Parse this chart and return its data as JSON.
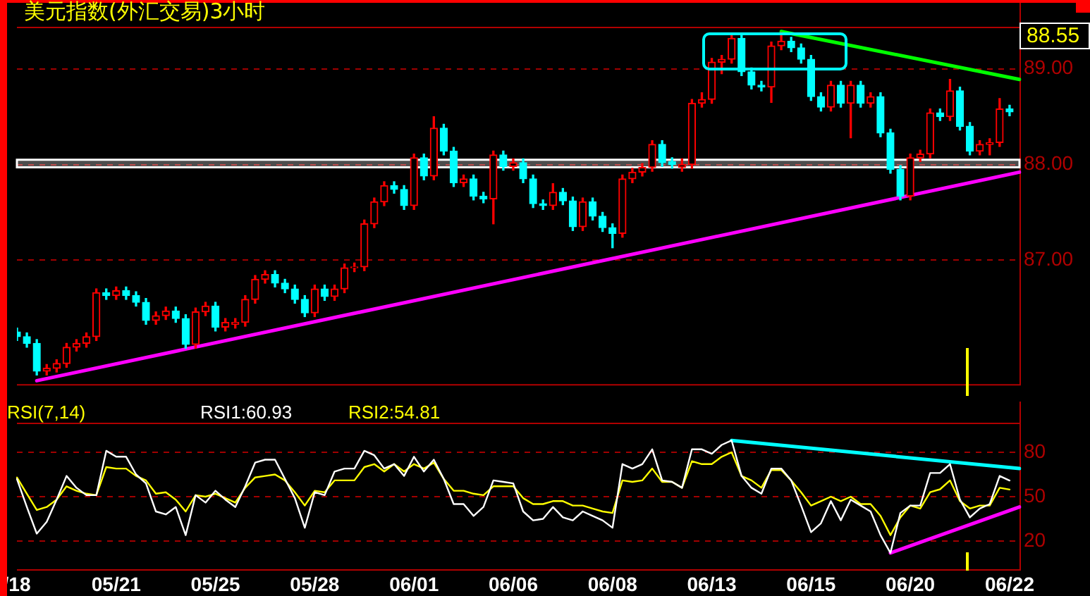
{
  "chart_data": [
    {
      "type": "candlestick",
      "title": "美元指数(外汇交易)3小时",
      "annotations": [
        "88.55"
      ],
      "categories": [
        null,
        null,
        null,
        null,
        null,
        null,
        null,
        null,
        null,
        null,
        null,
        null,
        null,
        null,
        null,
        null,
        null,
        null,
        null,
        null,
        null,
        null,
        null,
        null,
        null,
        null,
        null,
        null,
        null,
        null,
        null,
        null,
        null,
        null,
        null,
        null,
        null,
        null,
        null,
        null,
        null,
        null,
        null,
        null,
        null,
        null,
        null,
        null,
        null,
        null,
        null,
        null,
        null,
        null,
        null,
        null,
        null,
        null,
        null,
        null,
        null,
        null,
        null,
        null,
        null,
        null,
        null,
        null,
        null,
        null,
        null,
        null,
        null,
        null,
        null,
        null,
        null,
        null,
        null,
        null,
        null,
        null,
        null,
        null,
        null,
        null,
        null,
        null,
        null,
        null,
        null,
        null,
        null,
        null,
        null,
        null,
        null,
        null,
        null,
        null,
        null,
        null
      ],
      "ohlc": [
        [
          86.25,
          86.29,
          86.16,
          86.2
        ],
        [
          86.2,
          86.24,
          86.09,
          86.13
        ],
        [
          86.13,
          86.17,
          85.8,
          85.84
        ],
        [
          85.84,
          85.91,
          85.8,
          85.87
        ],
        [
          85.87,
          85.96,
          85.83,
          85.92
        ],
        [
          85.92,
          86.13,
          85.88,
          86.09
        ],
        [
          86.09,
          86.17,
          86.05,
          86.13
        ],
        [
          86.13,
          86.24,
          86.09,
          86.2
        ],
        [
          86.2,
          86.7,
          86.16,
          86.66
        ],
        [
          86.66,
          86.7,
          86.59,
          86.63
        ],
        [
          86.63,
          86.72,
          86.59,
          86.68
        ],
        [
          86.68,
          86.72,
          86.59,
          86.63
        ],
        [
          86.63,
          86.67,
          86.52,
          86.56
        ],
        [
          86.56,
          86.6,
          86.33,
          86.37
        ],
        [
          86.37,
          86.46,
          86.33,
          86.42
        ],
        [
          86.42,
          86.51,
          86.38,
          86.47
        ],
        [
          86.47,
          86.51,
          86.35,
          86.39
        ],
        [
          86.39,
          86.43,
          86.08,
          86.12
        ],
        [
          86.12,
          86.5,
          86.08,
          86.46
        ],
        [
          86.46,
          86.56,
          86.42,
          86.52
        ],
        [
          86.52,
          86.56,
          86.26,
          86.3
        ],
        [
          86.3,
          86.39,
          86.26,
          86.35
        ],
        [
          86.33,
          86.39,
          86.29,
          86.35
        ],
        [
          86.35,
          86.63,
          86.31,
          86.59
        ],
        [
          86.59,
          86.84,
          86.55,
          86.8
        ],
        [
          86.8,
          86.89,
          86.76,
          86.85
        ],
        [
          86.85,
          86.89,
          86.72,
          86.76
        ],
        [
          86.76,
          86.8,
          86.66,
          86.7
        ],
        [
          86.7,
          86.74,
          86.55,
          86.59
        ],
        [
          86.59,
          86.63,
          86.41,
          86.45
        ],
        [
          86.45,
          86.74,
          86.41,
          86.7
        ],
        [
          86.7,
          86.74,
          86.58,
          86.62
        ],
        [
          86.62,
          86.74,
          86.58,
          86.7
        ],
        [
          86.7,
          86.96,
          86.66,
          86.92
        ],
        [
          86.92,
          86.97,
          86.88,
          86.93
        ],
        [
          86.93,
          87.42,
          86.89,
          87.38
        ],
        [
          87.38,
          87.65,
          87.34,
          87.61
        ],
        [
          87.61,
          87.82,
          87.57,
          87.78
        ],
        [
          87.78,
          87.82,
          87.7,
          87.74
        ],
        [
          87.74,
          87.78,
          87.53,
          87.57
        ],
        [
          87.57,
          88.11,
          87.53,
          88.07
        ],
        [
          88.07,
          88.11,
          87.84,
          87.88
        ],
        [
          87.88,
          88.5,
          87.84,
          88.38
        ],
        [
          88.38,
          88.42,
          88.1,
          88.14
        ],
        [
          88.14,
          88.18,
          87.77,
          87.81
        ],
        [
          87.81,
          87.89,
          87.77,
          87.85
        ],
        [
          87.85,
          87.89,
          87.63,
          87.67
        ],
        [
          87.67,
          87.71,
          87.6,
          87.64
        ],
        [
          87.64,
          88.14,
          87.38,
          88.1
        ],
        [
          88.1,
          88.14,
          87.94,
          87.98
        ],
        [
          87.98,
          88.06,
          87.94,
          88.02
        ],
        [
          88.02,
          88.06,
          87.81,
          87.85
        ],
        [
          87.85,
          87.89,
          87.55,
          87.59
        ],
        [
          87.59,
          87.63,
          87.53,
          87.57
        ],
        [
          87.57,
          87.8,
          87.53,
          87.71
        ],
        [
          87.71,
          87.75,
          87.58,
          87.62
        ],
        [
          87.62,
          87.66,
          87.31,
          87.35
        ],
        [
          87.35,
          87.65,
          87.31,
          87.61
        ],
        [
          87.61,
          87.65,
          87.42,
          87.46
        ],
        [
          87.46,
          87.5,
          87.3,
          87.34
        ],
        [
          87.34,
          87.38,
          87.13,
          87.28
        ],
        [
          87.28,
          87.89,
          87.24,
          87.85
        ],
        [
          87.85,
          87.96,
          87.81,
          87.92
        ],
        [
          87.92,
          88.01,
          87.88,
          87.97
        ],
        [
          87.97,
          88.25,
          87.93,
          88.21
        ],
        [
          88.21,
          88.25,
          87.98,
          88.02
        ],
        [
          88.03,
          88.07,
          87.96,
          88.0
        ],
        [
          87.97,
          88.06,
          87.93,
          88.0
        ],
        [
          88.0,
          88.68,
          87.96,
          88.64
        ],
        [
          88.64,
          88.75,
          88.6,
          88.68
        ],
        [
          88.68,
          89.11,
          88.64,
          89.07
        ],
        [
          89.07,
          89.14,
          88.95,
          89.1
        ],
        [
          89.1,
          89.37,
          89.06,
          89.32
        ],
        [
          89.32,
          89.36,
          88.93,
          88.97
        ],
        [
          88.97,
          89.01,
          88.79,
          88.83
        ],
        [
          88.83,
          88.87,
          88.77,
          88.81
        ],
        [
          88.81,
          89.28,
          88.65,
          89.24
        ],
        [
          89.24,
          89.38,
          89.2,
          89.29
        ],
        [
          89.29,
          89.33,
          89.18,
          89.22
        ],
        [
          89.22,
          89.26,
          89.06,
          89.1
        ],
        [
          89.1,
          89.14,
          88.67,
          88.71
        ],
        [
          88.71,
          88.75,
          88.56,
          88.6
        ],
        [
          88.6,
          88.87,
          88.56,
          88.83
        ],
        [
          88.83,
          88.87,
          88.6,
          88.64
        ],
        [
          88.64,
          88.87,
          88.28,
          88.83
        ],
        [
          88.83,
          88.87,
          88.6,
          88.64
        ],
        [
          88.64,
          88.75,
          88.6,
          88.71
        ],
        [
          88.71,
          88.75,
          88.29,
          88.33
        ],
        [
          88.33,
          88.37,
          87.91,
          87.95
        ],
        [
          87.95,
          87.99,
          87.63,
          87.67
        ],
        [
          87.67,
          88.11,
          87.63,
          88.07
        ],
        [
          88.07,
          88.15,
          88.03,
          88.11
        ],
        [
          88.11,
          88.58,
          88.07,
          88.54
        ],
        [
          88.54,
          88.58,
          88.46,
          88.5
        ],
        [
          88.5,
          88.89,
          88.46,
          88.77
        ],
        [
          88.77,
          88.81,
          88.36,
          88.4
        ],
        [
          88.4,
          88.44,
          88.1,
          88.14
        ],
        [
          88.14,
          88.25,
          88.1,
          88.21
        ],
        [
          88.21,
          88.27,
          88.1,
          88.23
        ],
        [
          88.23,
          88.69,
          88.19,
          88.58
        ],
        [
          88.58,
          88.62,
          88.51,
          88.55
        ],
        null
      ],
      "colors": [
        "#00ffff",
        "#00ffff",
        "#00ffff",
        "#ff0000",
        "#ff0000",
        "#ff0000",
        "#ff0000",
        "#ff0000",
        "#ff0000",
        "#00ffff",
        "#ff0000",
        "#00ffff",
        "#00ffff",
        "#00ffff",
        "#ff0000",
        "#ff0000",
        "#00ffff",
        "#00ffff",
        "#ff0000",
        "#ff0000",
        "#00ffff",
        "#ff0000",
        "#ff0000",
        "#ff0000",
        "#ff0000",
        "#ff0000",
        "#00ffff",
        "#00ffff",
        "#00ffff",
        "#00ffff",
        "#ff0000",
        "#00ffff",
        "#ff0000",
        "#ff0000",
        "#ff0000",
        "#ff0000",
        "#ff0000",
        "#ff0000",
        "#00ffff",
        "#00ffff",
        "#ff0000",
        "#00ffff",
        "#ff0000",
        "#00ffff",
        "#00ffff",
        "#ff0000",
        "#00ffff",
        "#00ffff",
        "#ff0000",
        "#00ffff",
        "#ff0000",
        "#00ffff",
        "#00ffff",
        "#00ffff",
        "#ff0000",
        "#00ffff",
        "#00ffff",
        "#ff0000",
        "#00ffff",
        "#00ffff",
        "#00ffff",
        "#ff0000",
        "#ff0000",
        "#ff0000",
        "#ff0000",
        "#00ffff",
        "#00ffff",
        "#ff0000",
        "#ff0000",
        "#ff0000",
        "#ff0000",
        "#ff0000",
        "#ff0000",
        "#00ffff",
        "#00ffff",
        "#00ffff",
        "#ff0000",
        "#ff0000",
        "#00ffff",
        "#00ffff",
        "#00ffff",
        "#00ffff",
        "#ff0000",
        "#00ffff",
        "#ff0000",
        "#00ffff",
        "#ff0000",
        "#00ffff",
        "#00ffff",
        "#00ffff",
        "#ff0000",
        "#ff0000",
        "#ff0000",
        "#00ffff",
        "#ff0000",
        "#00ffff",
        "#00ffff",
        "#ff0000",
        "#ff0000",
        "#ff0000",
        "#00ffff",
        null
      ],
      "series": [
        {
          "type": "line",
          "color": "#ff00ff",
          "values": [
            null,
            null,
            85.74,
            null,
            null,
            null,
            null,
            null,
            null,
            null,
            null,
            null,
            null,
            null,
            null,
            null,
            null,
            null,
            null,
            null,
            null,
            null,
            null,
            null,
            null,
            null,
            null,
            null,
            null,
            null,
            null,
            null,
            null,
            null,
            null,
            null,
            null,
            null,
            null,
            null,
            null,
            null,
            null,
            null,
            null,
            null,
            null,
            null,
            null,
            null,
            null,
            null,
            null,
            null,
            null,
            null,
            null,
            null,
            null,
            null,
            null,
            null,
            null,
            null,
            null,
            null,
            null,
            null,
            null,
            null,
            null,
            null,
            null,
            null,
            null,
            null,
            null,
            null,
            null,
            null,
            null,
            null,
            null,
            null,
            null,
            null,
            null,
            null,
            null,
            null,
            null,
            null,
            null,
            null,
            null,
            null,
            null,
            null,
            null,
            null,
            null,
            87.92
          ]
        },
        {
          "type": "line",
          "color": "#00ff00",
          "values": [
            null,
            null,
            null,
            null,
            null,
            null,
            null,
            null,
            null,
            null,
            null,
            null,
            null,
            null,
            null,
            null,
            null,
            null,
            null,
            null,
            null,
            null,
            null,
            null,
            null,
            null,
            null,
            null,
            null,
            null,
            null,
            null,
            null,
            null,
            null,
            null,
            null,
            null,
            null,
            null,
            null,
            null,
            null,
            null,
            null,
            null,
            null,
            null,
            null,
            null,
            null,
            null,
            null,
            null,
            null,
            null,
            null,
            null,
            null,
            null,
            null,
            null,
            null,
            null,
            null,
            null,
            null,
            null,
            null,
            null,
            null,
            null,
            null,
            null,
            null,
            null,
            null,
            89.39,
            null,
            null,
            null,
            null,
            null,
            null,
            null,
            null,
            null,
            null,
            null,
            null,
            null,
            null,
            null,
            null,
            null,
            null,
            null,
            null,
            null,
            null,
            null,
            88.89
          ]
        }
      ],
      "bands": [
        {
          "axis": "y",
          "from": 87.97,
          "to": 88.05,
          "color": "#ffffff"
        }
      ],
      "ylim": [
        85.69,
        89.44
      ],
      "yticks": [
        {
          "value": 87,
          "label": "87.00"
        },
        {
          "value": 88,
          "label": "88.00"
        },
        {
          "value": 89,
          "label": "89.00"
        }
      ],
      "grid": "y",
      "tick_labels": "y"
    },
    {
      "type": "line",
      "annotations": [
        "RSI(7,14)",
        "RSI1:60.93",
        "RSI2:54.81"
      ],
      "categories": [
        "/18",
        null,
        null,
        null,
        null,
        null,
        null,
        null,
        null,
        null,
        "05/21",
        null,
        null,
        null,
        null,
        null,
        null,
        null,
        null,
        null,
        "05/25",
        null,
        null,
        null,
        null,
        null,
        null,
        null,
        null,
        null,
        "05/28",
        null,
        null,
        null,
        null,
        null,
        null,
        null,
        null,
        null,
        "06/01",
        null,
        null,
        null,
        null,
        null,
        null,
        null,
        null,
        null,
        "06/06",
        null,
        null,
        null,
        null,
        null,
        null,
        null,
        null,
        null,
        "06/08",
        null,
        null,
        null,
        null,
        null,
        null,
        null,
        null,
        null,
        "06/13",
        null,
        null,
        null,
        null,
        null,
        null,
        null,
        null,
        null,
        "06/15",
        null,
        null,
        null,
        null,
        null,
        null,
        null,
        null,
        null,
        "06/20",
        null,
        null,
        null,
        null,
        null,
        null,
        null,
        null,
        null,
        "06/22",
        null
      ],
      "series": [
        {
          "color": "#ffffff",
          "values": [
            62,
            43,
            25,
            33,
            48,
            64,
            56,
            51,
            51,
            81,
            77,
            77,
            65,
            59,
            40,
            38,
            43,
            24,
            51,
            46,
            54,
            48,
            43,
            57,
            73,
            75,
            75,
            62,
            49,
            29,
            53,
            51,
            67,
            69,
            69,
            81,
            78,
            69,
            72,
            64,
            77,
            67,
            75,
            62,
            45,
            45,
            37,
            43,
            61,
            60,
            59,
            40,
            34,
            35,
            43,
            36,
            34,
            40,
            37,
            34,
            29,
            72,
            69,
            72,
            82,
            61,
            60,
            56,
            82,
            82,
            79,
            85,
            88,
            64,
            56,
            52,
            69,
            69,
            61,
            44,
            26,
            32,
            47,
            34,
            48,
            44,
            40,
            24,
            12,
            39,
            44,
            44,
            66,
            66,
            72,
            48,
            36,
            42,
            45,
            64,
            60.93,
            null
          ]
        },
        {
          "color": "#ffff00",
          "values": [
            63,
            52,
            41,
            43,
            48,
            57,
            54,
            52,
            51,
            70,
            69,
            69,
            64,
            61,
            52,
            53,
            48,
            40,
            51,
            50,
            52,
            49,
            46,
            56,
            63,
            64,
            65,
            61,
            53,
            44,
            54,
            53,
            61,
            61,
            61,
            70,
            72,
            67,
            72,
            67,
            72,
            69,
            73,
            62,
            54,
            54,
            52,
            51,
            57,
            57,
            57,
            49,
            45,
            45,
            47,
            47,
            44,
            44,
            42,
            40,
            39,
            61,
            60,
            61,
            69,
            60,
            60,
            56,
            74,
            72,
            72,
            77,
            80,
            64,
            61,
            56,
            68,
            68,
            61,
            53,
            44,
            47,
            50,
            47,
            50,
            45,
            45,
            37,
            24,
            36,
            44,
            42,
            53,
            55,
            61,
            47,
            42,
            44,
            44,
            56,
            54.81,
            null
          ]
        },
        {
          "color": "#00ffff",
          "values": [
            null,
            null,
            null,
            null,
            null,
            null,
            null,
            null,
            null,
            null,
            null,
            null,
            null,
            null,
            null,
            null,
            null,
            null,
            null,
            null,
            null,
            null,
            null,
            null,
            null,
            null,
            null,
            null,
            null,
            null,
            null,
            null,
            null,
            null,
            null,
            null,
            null,
            null,
            null,
            null,
            null,
            null,
            null,
            null,
            null,
            null,
            null,
            null,
            null,
            null,
            null,
            null,
            null,
            null,
            null,
            null,
            null,
            null,
            null,
            null,
            null,
            null,
            null,
            null,
            null,
            null,
            null,
            null,
            null,
            null,
            null,
            null,
            88,
            null,
            null,
            null,
            null,
            null,
            null,
            null,
            null,
            null,
            null,
            null,
            null,
            null,
            null,
            null,
            null,
            null,
            null,
            null,
            null,
            null,
            null,
            null,
            null,
            null,
            null,
            null,
            null,
            69
          ]
        },
        {
          "color": "#ff00ff",
          "values": [
            null,
            null,
            null,
            null,
            null,
            null,
            null,
            null,
            null,
            null,
            null,
            null,
            null,
            null,
            null,
            null,
            null,
            null,
            null,
            null,
            null,
            null,
            null,
            null,
            null,
            null,
            null,
            null,
            null,
            null,
            null,
            null,
            null,
            null,
            null,
            null,
            null,
            null,
            null,
            null,
            null,
            null,
            null,
            null,
            null,
            null,
            null,
            null,
            null,
            null,
            null,
            null,
            null,
            null,
            null,
            null,
            null,
            null,
            null,
            null,
            null,
            null,
            null,
            null,
            null,
            null,
            null,
            null,
            null,
            null,
            null,
            null,
            null,
            null,
            null,
            null,
            null,
            null,
            null,
            null,
            null,
            null,
            null,
            null,
            null,
            null,
            null,
            null,
            12,
            null,
            null,
            null,
            null,
            null,
            null,
            null,
            null,
            null,
            null,
            null,
            null,
            43
          ]
        }
      ],
      "ylim": [
        0,
        100
      ],
      "yticks": [
        20,
        50,
        80
      ],
      "grid": "y"
    }
  ]
}
